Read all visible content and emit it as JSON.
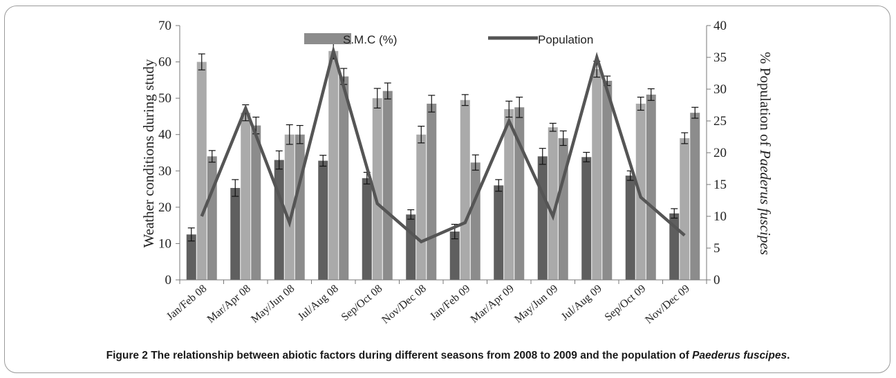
{
  "chart_data": {
    "type": "bar",
    "categories": [
      "Jan/Feb 08",
      "Mar/Apr 08",
      "May/Jun 08",
      "Jul/Aug 08",
      "Sep/Oct 08",
      "Nov/Dec 08",
      "Jan/Feb 09",
      "Mar/Apr 09",
      "May/Jun 09",
      "Jul/Aug 09",
      "Sep/Oct 09",
      "Nov/Dec 09"
    ],
    "ylabel": "Weather conditions  during study",
    "y2label_prefix": "% Population  of ",
    "y2label_species": "Paederus fuscipes",
    "ylim": [
      0,
      70
    ],
    "y2lim": [
      0,
      40
    ],
    "yticks": [
      0,
      10,
      20,
      30,
      40,
      50,
      60,
      70
    ],
    "y2ticks": [
      0,
      5,
      10,
      15,
      20,
      25,
      30,
      35,
      40
    ],
    "grid": false,
    "legend_position": "top",
    "series": [
      {
        "name": "",
        "axis": "left",
        "color": "#5f5f5f",
        "values": [
          12.5,
          25.3,
          33.0,
          32.8,
          28.0,
          18.0,
          13.3,
          26.0,
          34.0,
          33.8,
          28.7,
          18.3
        ],
        "errors": [
          1.8,
          2.3,
          2.5,
          1.5,
          1.6,
          1.3,
          2.0,
          1.6,
          2.2,
          1.3,
          1.3,
          1.3
        ]
      },
      {
        "name": "",
        "axis": "left",
        "color": "#aaaaaa",
        "values": [
          60.0,
          46.0,
          40.0,
          63.0,
          50.0,
          40.0,
          49.5,
          47.0,
          42.0,
          58.0,
          48.5,
          39.0
        ],
        "errors": [
          2.2,
          2.2,
          2.7,
          2.2,
          2.7,
          2.3,
          1.5,
          2.2,
          1.1,
          2.2,
          1.8,
          1.5
        ]
      },
      {
        "name": "S.M.C (%)",
        "axis": "left",
        "color": "#8c8c8c",
        "values": [
          34.0,
          42.5,
          40.0,
          56.0,
          52.0,
          48.5,
          32.3,
          47.5,
          39.0,
          54.8,
          51.0,
          46.0
        ],
        "errors": [
          1.6,
          2.3,
          2.5,
          2.2,
          2.2,
          2.3,
          2.1,
          2.8,
          2.0,
          1.3,
          1.6,
          1.5
        ]
      },
      {
        "name": "Population",
        "axis": "right",
        "type": "line",
        "color": "#555555",
        "values": [
          10,
          27,
          9,
          36,
          12,
          6,
          9,
          25,
          10,
          35,
          13,
          7
        ]
      }
    ]
  },
  "caption": {
    "lead": "Figure 2 The relationship between abiotic factors during different seasons from 2008 to 2009 and the population of ",
    "species": "Paederus fuscipes",
    "end": "."
  }
}
